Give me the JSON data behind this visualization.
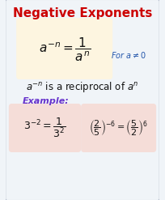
{
  "title": "Negative Exponents",
  "title_color": "#cc0000",
  "bg_color": "#f0f4f8",
  "border_color": "#b0b8c8",
  "main_box_color": "#fdf5e0",
  "example_box_color": "#f5ddd8",
  "fig_bg": "#f0f4f8",
  "formula_text": "$a^{-n} = \\dfrac{1}{a^n}$",
  "for_text": "For $a \\neq 0$",
  "reciprocal_text": "$a^{-n}$ is a reciprocal of $a^n$",
  "example_label": "Example:",
  "example_label_color": "#6633cc",
  "ex1_text": "$3^{-2} = \\dfrac{1}{3^2}$",
  "ex2_text": "$\\left(\\dfrac{2}{5}\\right)^{-6} = \\left(\\dfrac{5}{2}\\right)^{6}$"
}
